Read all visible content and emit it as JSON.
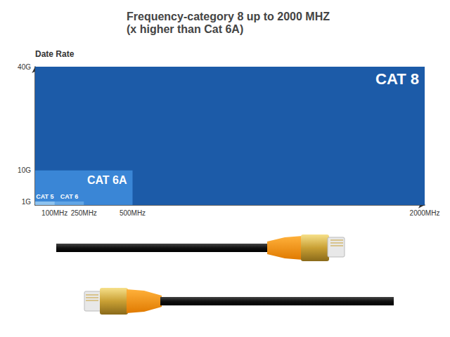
{
  "chart_data": {
    "type": "rectangle",
    "title": "Frequency-category 8 up to 2000 MHZ",
    "subtitle": "(x higher than Cat 6A)",
    "y_label": "Date Rate",
    "categories": [
      "CAT 5",
      "CAT 6",
      "CAT 6A",
      "CAT 8"
    ],
    "x": [
      100,
      250,
      500,
      2000
    ],
    "values": [
      1,
      1,
      10,
      40
    ],
    "colors": [
      "#8ec3f0",
      "#62a6e6",
      "#3a86d6",
      "#1c5ba8"
    ],
    "xlim": [
      0,
      2000
    ],
    "ylim": [
      0,
      40
    ],
    "xticks": [
      {
        "value": 100,
        "label": "100MHz"
      },
      {
        "value": 250,
        "label": "250MHz"
      },
      {
        "value": 500,
        "label": "500MHz"
      },
      {
        "value": 2000,
        "label": "2000MHz"
      }
    ],
    "yticks": [
      {
        "value": 1,
        "label": "1G"
      },
      {
        "value": 10,
        "label": "10G"
      },
      {
        "value": 40,
        "label": "40G"
      }
    ],
    "grid": false
  }
}
